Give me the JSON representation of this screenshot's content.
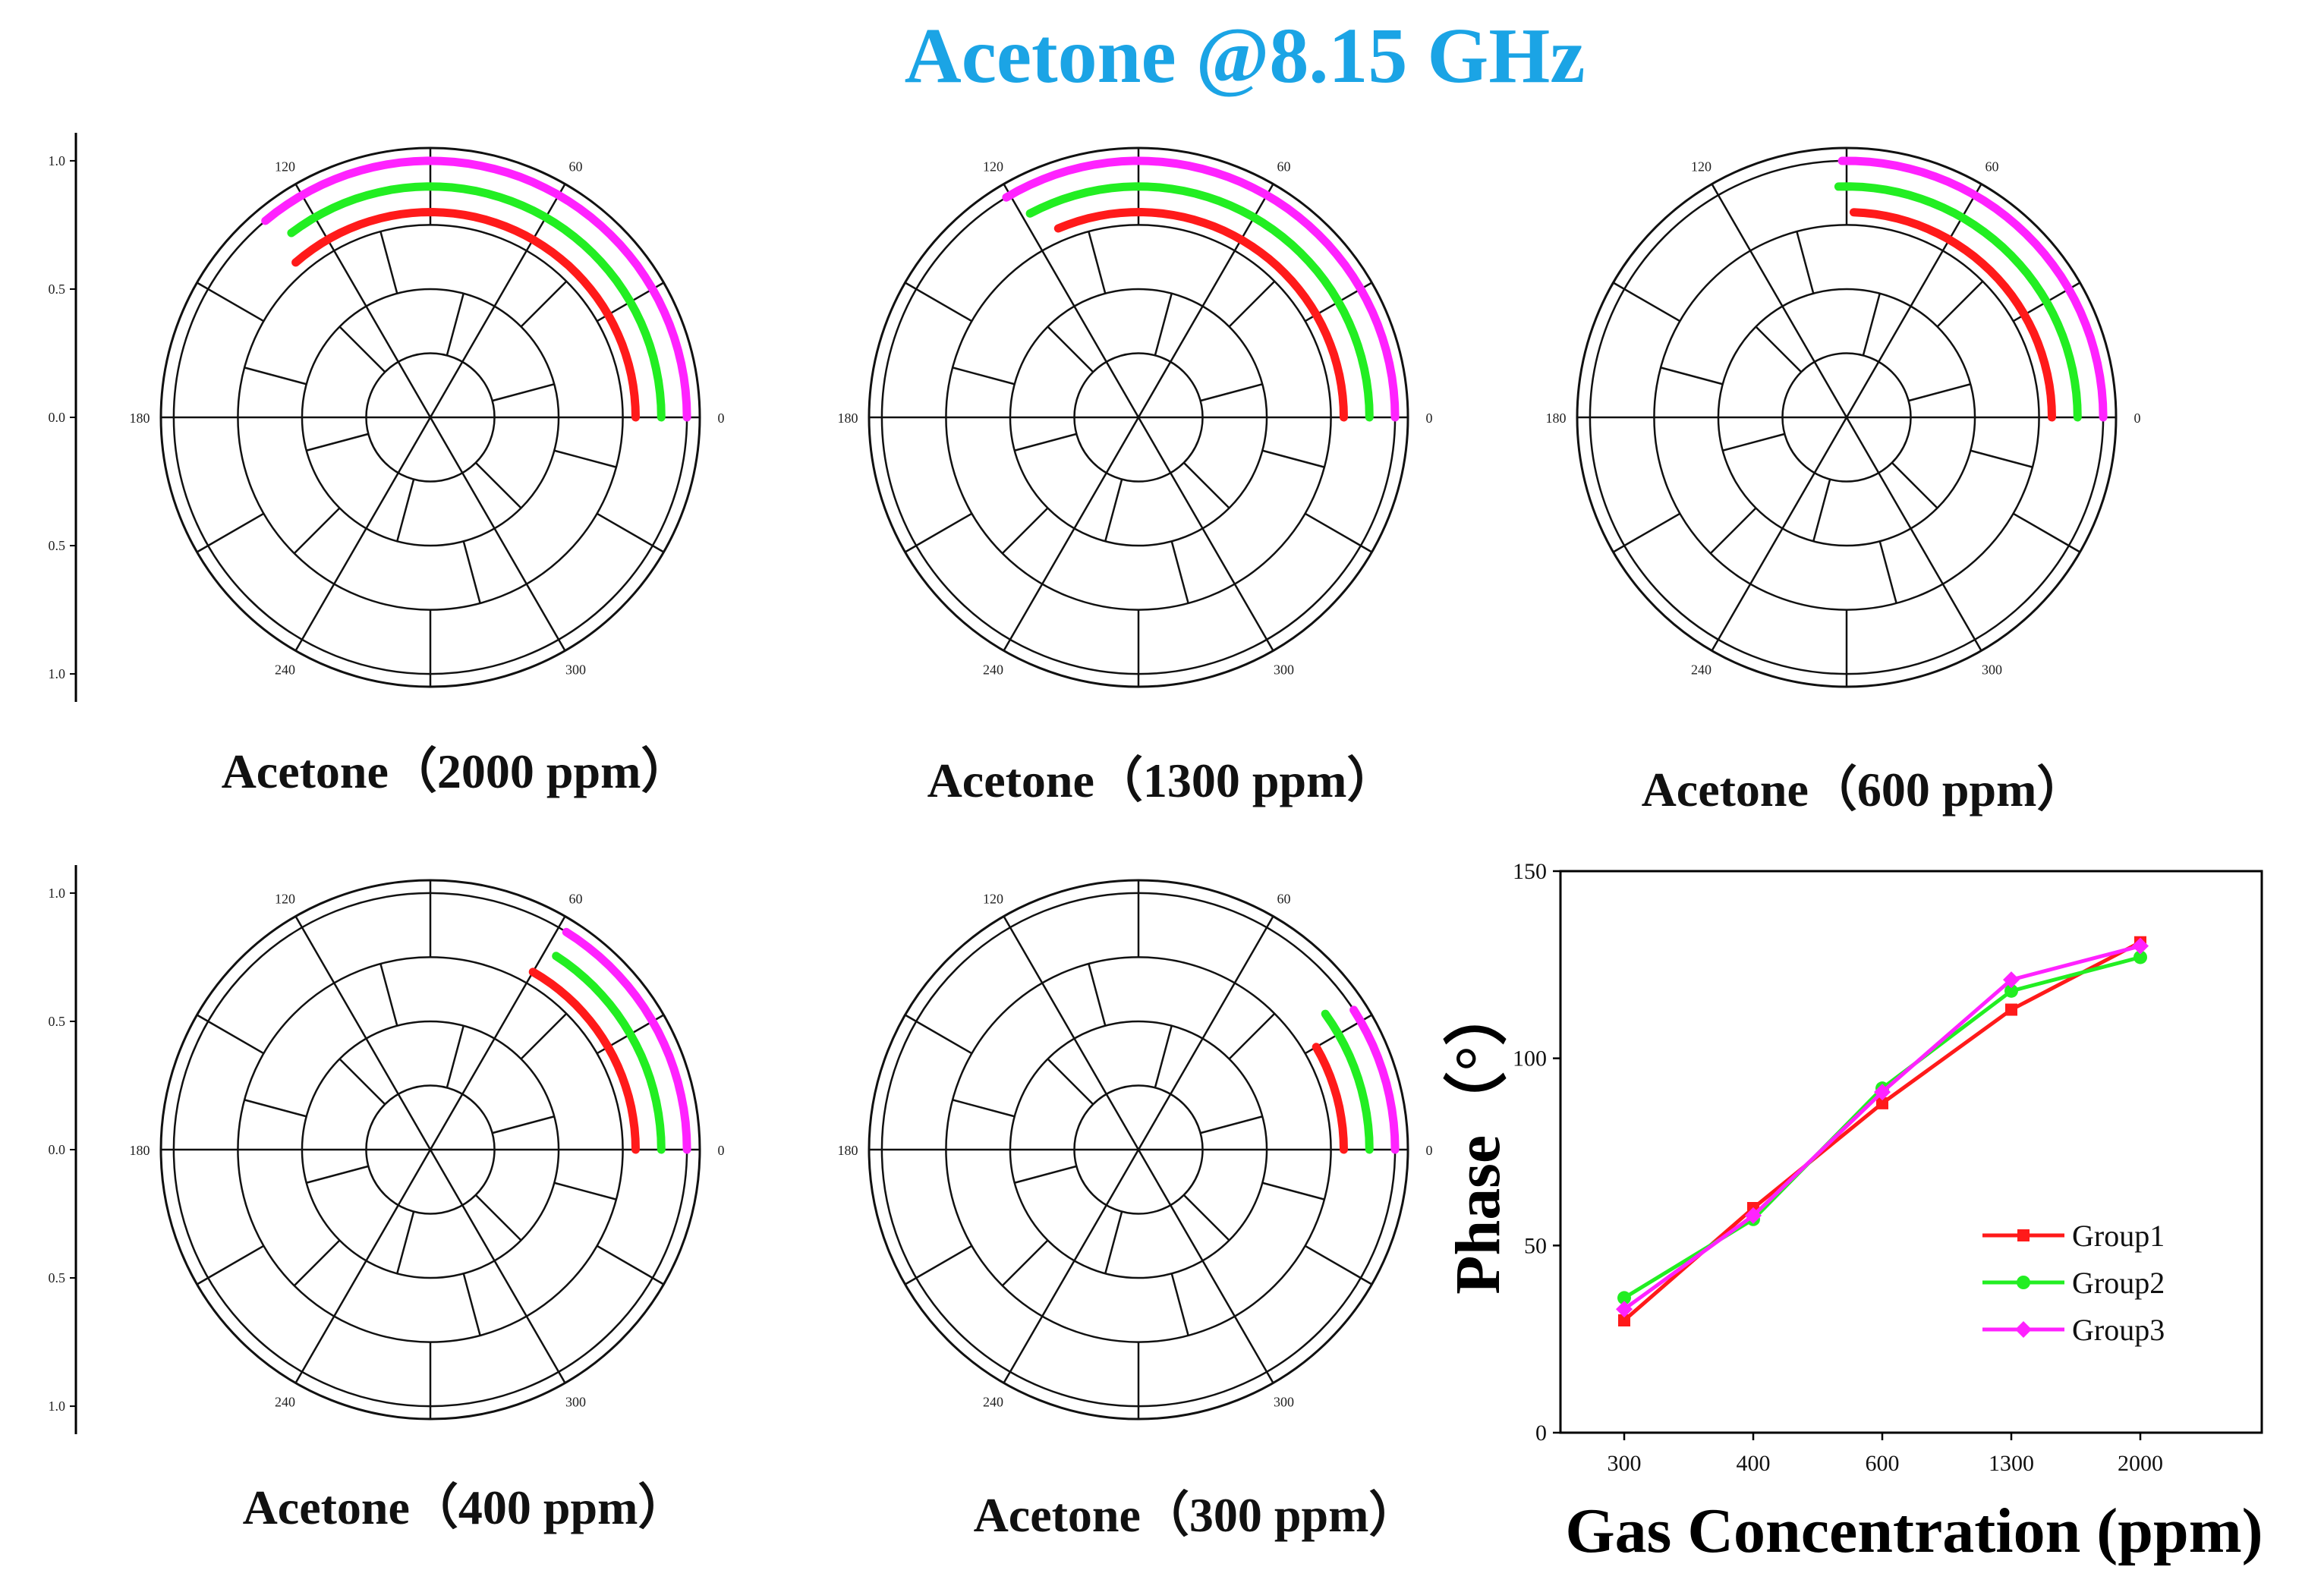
{
  "title": "Acetone @8.15 GHz",
  "title_color": "#1BA4E5",
  "series_colors": {
    "Group1": "#FF1A1A",
    "Group2": "#22EE22",
    "Group3": "#FF22FF"
  },
  "polar_ticks": {
    "angles": [
      "0",
      "60",
      "120",
      "180",
      "240",
      "300"
    ],
    "radial": [
      "1.0",
      "0.5",
      "0.0",
      "0.5",
      "1.0"
    ]
  },
  "chart_data": [
    {
      "type": "polar-arc",
      "caption": "Acetone（2000 ppm）",
      "series": [
        {
          "name": "Group1",
          "radius": 0.8,
          "phase_deg": 131
        },
        {
          "name": "Group2",
          "radius": 0.9,
          "phase_deg": 127
        },
        {
          "name": "Group3",
          "radius": 1.0,
          "phase_deg": 130
        }
      ]
    },
    {
      "type": "polar-arc",
      "caption": "Acetone（1300 ppm）",
      "series": [
        {
          "name": "Group1",
          "radius": 0.8,
          "phase_deg": 113
        },
        {
          "name": "Group2",
          "radius": 0.9,
          "phase_deg": 118
        },
        {
          "name": "Group3",
          "radius": 1.0,
          "phase_deg": 121
        }
      ]
    },
    {
      "type": "polar-arc",
      "caption": "Acetone（600 ppm）",
      "series": [
        {
          "name": "Group1",
          "radius": 0.8,
          "phase_deg": 88
        },
        {
          "name": "Group2",
          "radius": 0.9,
          "phase_deg": 92
        },
        {
          "name": "Group3",
          "radius": 1.0,
          "phase_deg": 91
        }
      ]
    },
    {
      "type": "polar-arc",
      "caption": "Acetone（400 ppm）",
      "series": [
        {
          "name": "Group1",
          "radius": 0.8,
          "phase_deg": 60
        },
        {
          "name": "Group2",
          "radius": 0.9,
          "phase_deg": 57
        },
        {
          "name": "Group3",
          "radius": 1.0,
          "phase_deg": 58
        }
      ]
    },
    {
      "type": "polar-arc",
      "caption": "Acetone（300 ppm）",
      "series": [
        {
          "name": "Group1",
          "radius": 0.8,
          "phase_deg": 30
        },
        {
          "name": "Group2",
          "radius": 0.9,
          "phase_deg": 36
        },
        {
          "name": "Group3",
          "radius": 1.0,
          "phase_deg": 33
        }
      ]
    },
    {
      "type": "line",
      "xlabel": "Gas Concentration (ppm)",
      "ylabel": "Phase（°）",
      "categories": [
        "300",
        "400",
        "600",
        "1300",
        "2000"
      ],
      "ylim": [
        0,
        150
      ],
      "yticks": [
        "0",
        "50",
        "100",
        "150"
      ],
      "legend": "bottom-right",
      "series": [
        {
          "name": "Group1",
          "values": [
            30,
            60,
            88,
            113,
            131
          ]
        },
        {
          "name": "Group2",
          "values": [
            36,
            57,
            92,
            118,
            127
          ]
        },
        {
          "name": "Group3",
          "values": [
            33,
            58,
            91,
            121,
            130
          ]
        }
      ]
    }
  ]
}
